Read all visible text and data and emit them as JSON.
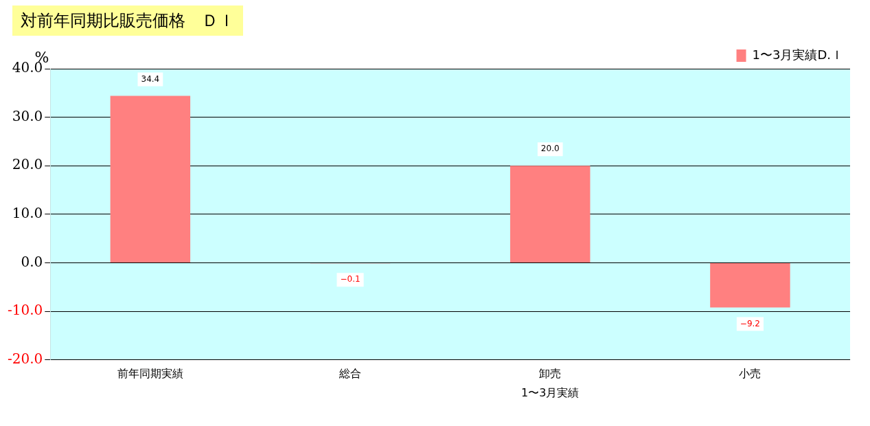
{
  "chart_data": {
    "type": "bar",
    "title": "対前年同期比販売価格　ＤＩ",
    "ylabel": "%",
    "categories": [
      "前年同期実績",
      "総合",
      "卸売",
      "小売"
    ],
    "series": [
      {
        "name": "1〜3月実績D.Ｉ",
        "color": "#ff8080",
        "values": [
          34.4,
          -0.1,
          20.0,
          -9.2
        ],
        "value_labels": [
          "34.4",
          "−0.1",
          "20.0",
          "−9.2"
        ]
      }
    ],
    "ylim": [
      -20,
      40
    ],
    "yticks": [
      {
        "value": -20,
        "label": "-20.0"
      },
      {
        "value": -10,
        "label": "-10.0"
      },
      {
        "value": 0,
        "label": "0.0"
      },
      {
        "value": 10,
        "label": "10.0"
      },
      {
        "value": 20,
        "label": "20.0"
      },
      {
        "value": 30,
        "label": "30.0"
      },
      {
        "value": 40,
        "label": "40.0"
      }
    ],
    "grid": "y",
    "legend": "top right",
    "annotations": [
      "1〜3月実績"
    ]
  }
}
